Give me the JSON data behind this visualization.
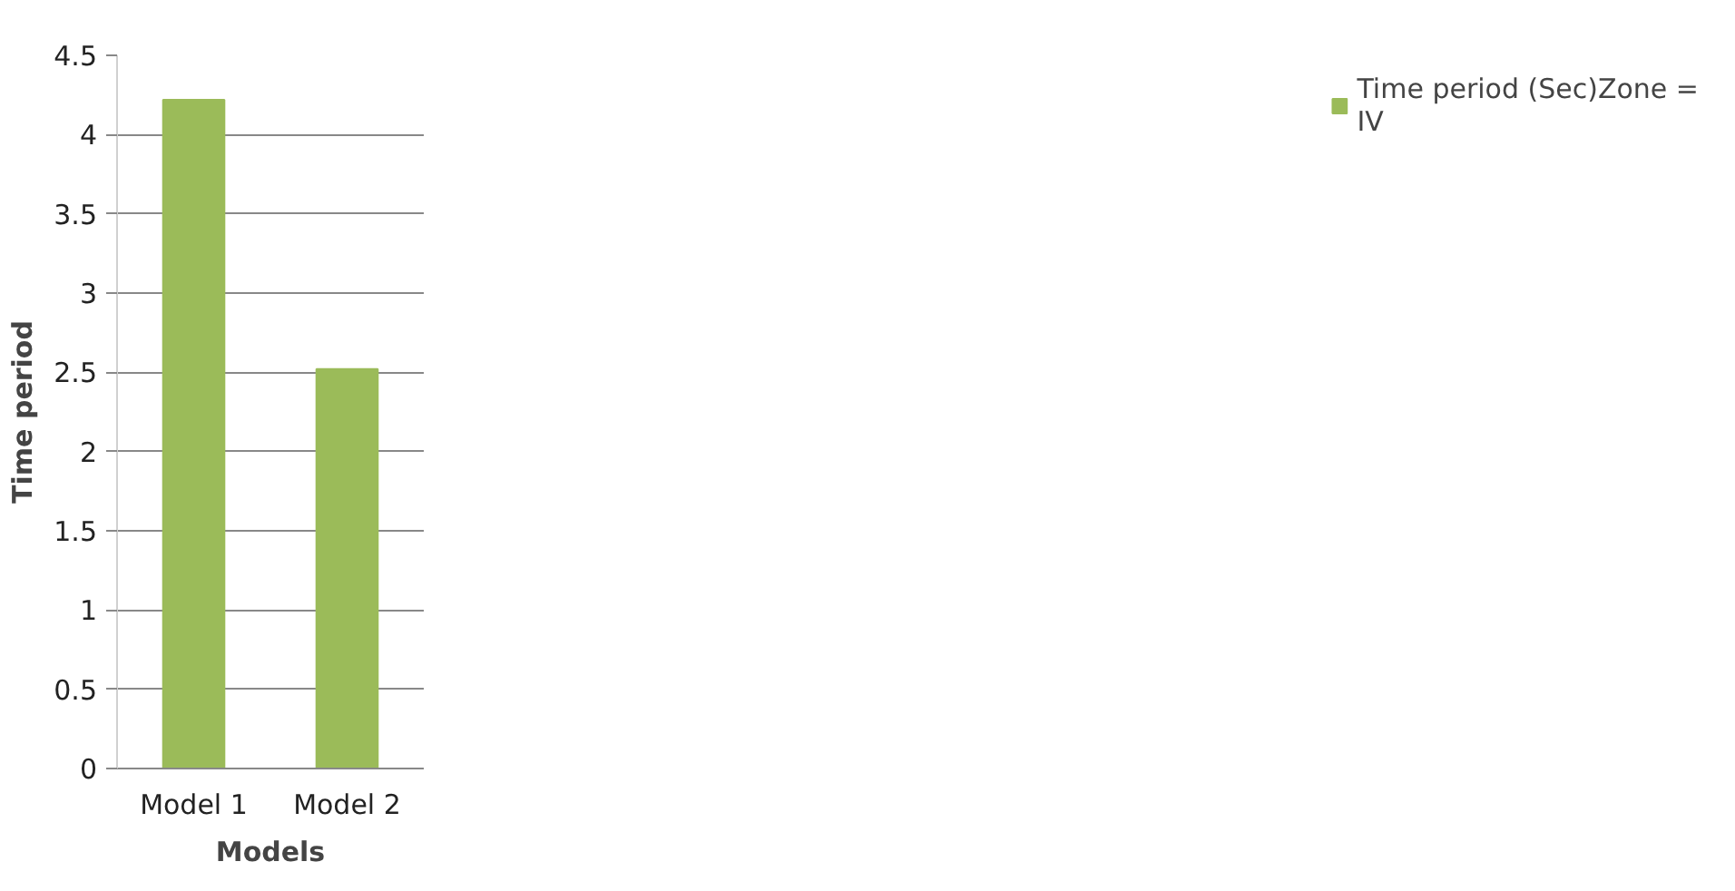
{
  "chart_data": {
    "type": "bar",
    "xlabel": "Models",
    "ylabel": "Time period",
    "categories": [
      "Model 1",
      "Model 2"
    ],
    "series": [
      {
        "name": "Time period (Sec)Zone = IV",
        "color": "#9bbb59",
        "values": [
          4.22,
          2.52
        ]
      }
    ],
    "ylim": [
      0,
      4.5
    ],
    "yticks": [
      0,
      0.5,
      1,
      1.5,
      2,
      2.5,
      3,
      3.5,
      4,
      4.5
    ],
    "grid": "y",
    "legend": "right"
  }
}
